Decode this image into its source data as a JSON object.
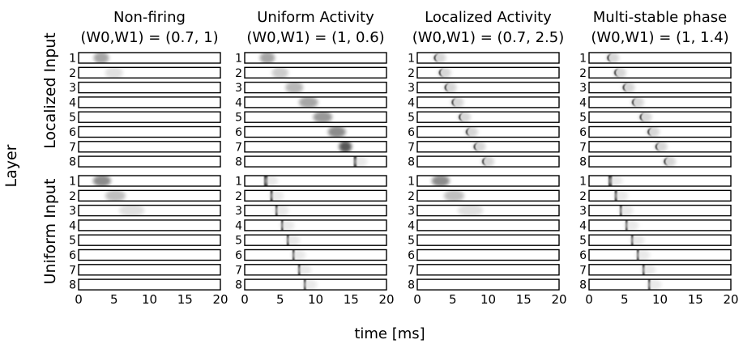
{
  "figure": {
    "y_axis_label": "Layer",
    "x_axis_label": "time [ms]",
    "row_groups": [
      {
        "label": "Localized Input",
        "layers": [
          "1",
          "2",
          "3",
          "4",
          "5",
          "6",
          "7",
          "8"
        ]
      },
      {
        "label": "Uniform Input",
        "layers": [
          "1",
          "2",
          "3",
          "4",
          "5",
          "6",
          "7",
          "8"
        ]
      }
    ],
    "x_ticks": [
      "0",
      "5",
      "10",
      "15",
      "20"
    ],
    "x_range": [
      0,
      20
    ],
    "panels": [
      {
        "title": "Non-firing",
        "params": "(W0,W1) = (0.7, 1)",
        "localized_activity": [
          {
            "layer": 1,
            "t": 3.2,
            "intensity": 0.35,
            "width": 1.2,
            "shape": "blob"
          },
          {
            "layer": 2,
            "t": 5.0,
            "intensity": 0.12,
            "width": 1.4,
            "shape": "blob"
          }
        ],
        "uniform_activity": [
          {
            "layer": 1,
            "t": 3.3,
            "intensity": 0.45,
            "width": 1.4,
            "shape": "blob"
          },
          {
            "layer": 2,
            "t": 5.2,
            "intensity": 0.25,
            "width": 1.6,
            "shape": "blob"
          },
          {
            "layer": 3,
            "t": 7.5,
            "intensity": 0.12,
            "width": 2.0,
            "shape": "blob"
          }
        ]
      },
      {
        "title": "Uniform Activity",
        "params": "(W0,W1) = (1, 0.6)",
        "localized_activity": [
          {
            "layer": 1,
            "t": 3.2,
            "intensity": 0.35,
            "width": 1.2,
            "shape": "blob"
          },
          {
            "layer": 2,
            "t": 5.0,
            "intensity": 0.2,
            "width": 1.3,
            "shape": "blob"
          },
          {
            "layer": 3,
            "t": 7.0,
            "intensity": 0.28,
            "width": 1.4,
            "shape": "blob"
          },
          {
            "layer": 4,
            "t": 9.0,
            "intensity": 0.35,
            "width": 1.5,
            "shape": "blob"
          },
          {
            "layer": 5,
            "t": 11.0,
            "intensity": 0.4,
            "width": 1.5,
            "shape": "blob"
          },
          {
            "layer": 6,
            "t": 13.0,
            "intensity": 0.45,
            "width": 1.4,
            "shape": "blob"
          },
          {
            "layer": 7,
            "t": 14.2,
            "intensity": 0.65,
            "width": 1.0,
            "shape": "blob"
          },
          {
            "layer": 8,
            "t": 15.6,
            "intensity": 0.95,
            "width": 0.4,
            "shape": "bar"
          }
        ],
        "uniform_activity": [
          {
            "layer": 1,
            "t": 3.0,
            "intensity": 0.95,
            "width": 0.5,
            "shape": "bar"
          },
          {
            "layer": 2,
            "t": 3.8,
            "intensity": 0.95,
            "width": 0.35,
            "shape": "bar"
          },
          {
            "layer": 3,
            "t": 4.5,
            "intensity": 0.95,
            "width": 0.3,
            "shape": "bar"
          },
          {
            "layer": 4,
            "t": 5.3,
            "intensity": 0.95,
            "width": 0.3,
            "shape": "bar"
          },
          {
            "layer": 5,
            "t": 6.1,
            "intensity": 0.95,
            "width": 0.3,
            "shape": "bar"
          },
          {
            "layer": 6,
            "t": 6.9,
            "intensity": 0.95,
            "width": 0.3,
            "shape": "bar"
          },
          {
            "layer": 7,
            "t": 7.7,
            "intensity": 0.95,
            "width": 0.3,
            "shape": "bar"
          },
          {
            "layer": 8,
            "t": 8.5,
            "intensity": 0.95,
            "width": 0.3,
            "shape": "bar"
          }
        ]
      },
      {
        "title": "Localized Activity",
        "params": "(W0,W1) = (0.7, 2.5)",
        "localized_activity": [
          {
            "layer": 1,
            "t": 2.8,
            "intensity": 0.95,
            "width": 0.7,
            "shape": "crescent"
          },
          {
            "layer": 2,
            "t": 3.5,
            "intensity": 0.95,
            "width": 0.7,
            "shape": "crescent"
          },
          {
            "layer": 3,
            "t": 4.3,
            "intensity": 0.95,
            "width": 0.7,
            "shape": "crescent"
          },
          {
            "layer": 4,
            "t": 5.3,
            "intensity": 0.95,
            "width": 0.7,
            "shape": "crescent"
          },
          {
            "layer": 5,
            "t": 6.3,
            "intensity": 0.95,
            "width": 0.7,
            "shape": "crescent"
          },
          {
            "layer": 6,
            "t": 7.3,
            "intensity": 0.95,
            "width": 0.7,
            "shape": "crescent"
          },
          {
            "layer": 7,
            "t": 8.4,
            "intensity": 0.95,
            "width": 0.7,
            "shape": "crescent"
          },
          {
            "layer": 8,
            "t": 9.6,
            "intensity": 0.95,
            "width": 0.7,
            "shape": "crescent"
          }
        ],
        "uniform_activity": [
          {
            "layer": 1,
            "t": 3.3,
            "intensity": 0.45,
            "width": 1.4,
            "shape": "blob"
          },
          {
            "layer": 2,
            "t": 5.2,
            "intensity": 0.25,
            "width": 1.6,
            "shape": "blob"
          },
          {
            "layer": 3,
            "t": 7.5,
            "intensity": 0.12,
            "width": 2.0,
            "shape": "blob"
          }
        ]
      },
      {
        "title": "Multi-stable phase",
        "params": "(W0,W1) = (1, 1.4)",
        "localized_activity": [
          {
            "layer": 1,
            "t": 3.0,
            "intensity": 0.95,
            "width": 0.7,
            "shape": "crescent"
          },
          {
            "layer": 2,
            "t": 4.0,
            "intensity": 0.95,
            "width": 0.7,
            "shape": "crescent"
          },
          {
            "layer": 3,
            "t": 5.2,
            "intensity": 0.95,
            "width": 0.7,
            "shape": "crescent"
          },
          {
            "layer": 4,
            "t": 6.5,
            "intensity": 0.95,
            "width": 0.7,
            "shape": "crescent"
          },
          {
            "layer": 5,
            "t": 7.6,
            "intensity": 0.95,
            "width": 0.7,
            "shape": "crescent"
          },
          {
            "layer": 6,
            "t": 8.7,
            "intensity": 0.95,
            "width": 0.7,
            "shape": "crescent"
          },
          {
            "layer": 7,
            "t": 9.8,
            "intensity": 0.95,
            "width": 0.7,
            "shape": "crescent"
          },
          {
            "layer": 8,
            "t": 11.0,
            "intensity": 0.95,
            "width": 0.7,
            "shape": "crescent"
          }
        ],
        "uniform_activity": [
          {
            "layer": 1,
            "t": 3.0,
            "intensity": 0.95,
            "width": 0.5,
            "shape": "bar"
          },
          {
            "layer": 2,
            "t": 3.8,
            "intensity": 0.95,
            "width": 0.35,
            "shape": "bar"
          },
          {
            "layer": 3,
            "t": 4.5,
            "intensity": 0.95,
            "width": 0.3,
            "shape": "bar"
          },
          {
            "layer": 4,
            "t": 5.3,
            "intensity": 0.95,
            "width": 0.3,
            "shape": "bar"
          },
          {
            "layer": 5,
            "t": 6.1,
            "intensity": 0.95,
            "width": 0.3,
            "shape": "bar"
          },
          {
            "layer": 6,
            "t": 6.9,
            "intensity": 0.95,
            "width": 0.3,
            "shape": "bar"
          },
          {
            "layer": 7,
            "t": 7.7,
            "intensity": 0.95,
            "width": 0.3,
            "shape": "bar"
          },
          {
            "layer": 8,
            "t": 8.5,
            "intensity": 0.95,
            "width": 0.3,
            "shape": "bar"
          }
        ]
      }
    ]
  }
}
